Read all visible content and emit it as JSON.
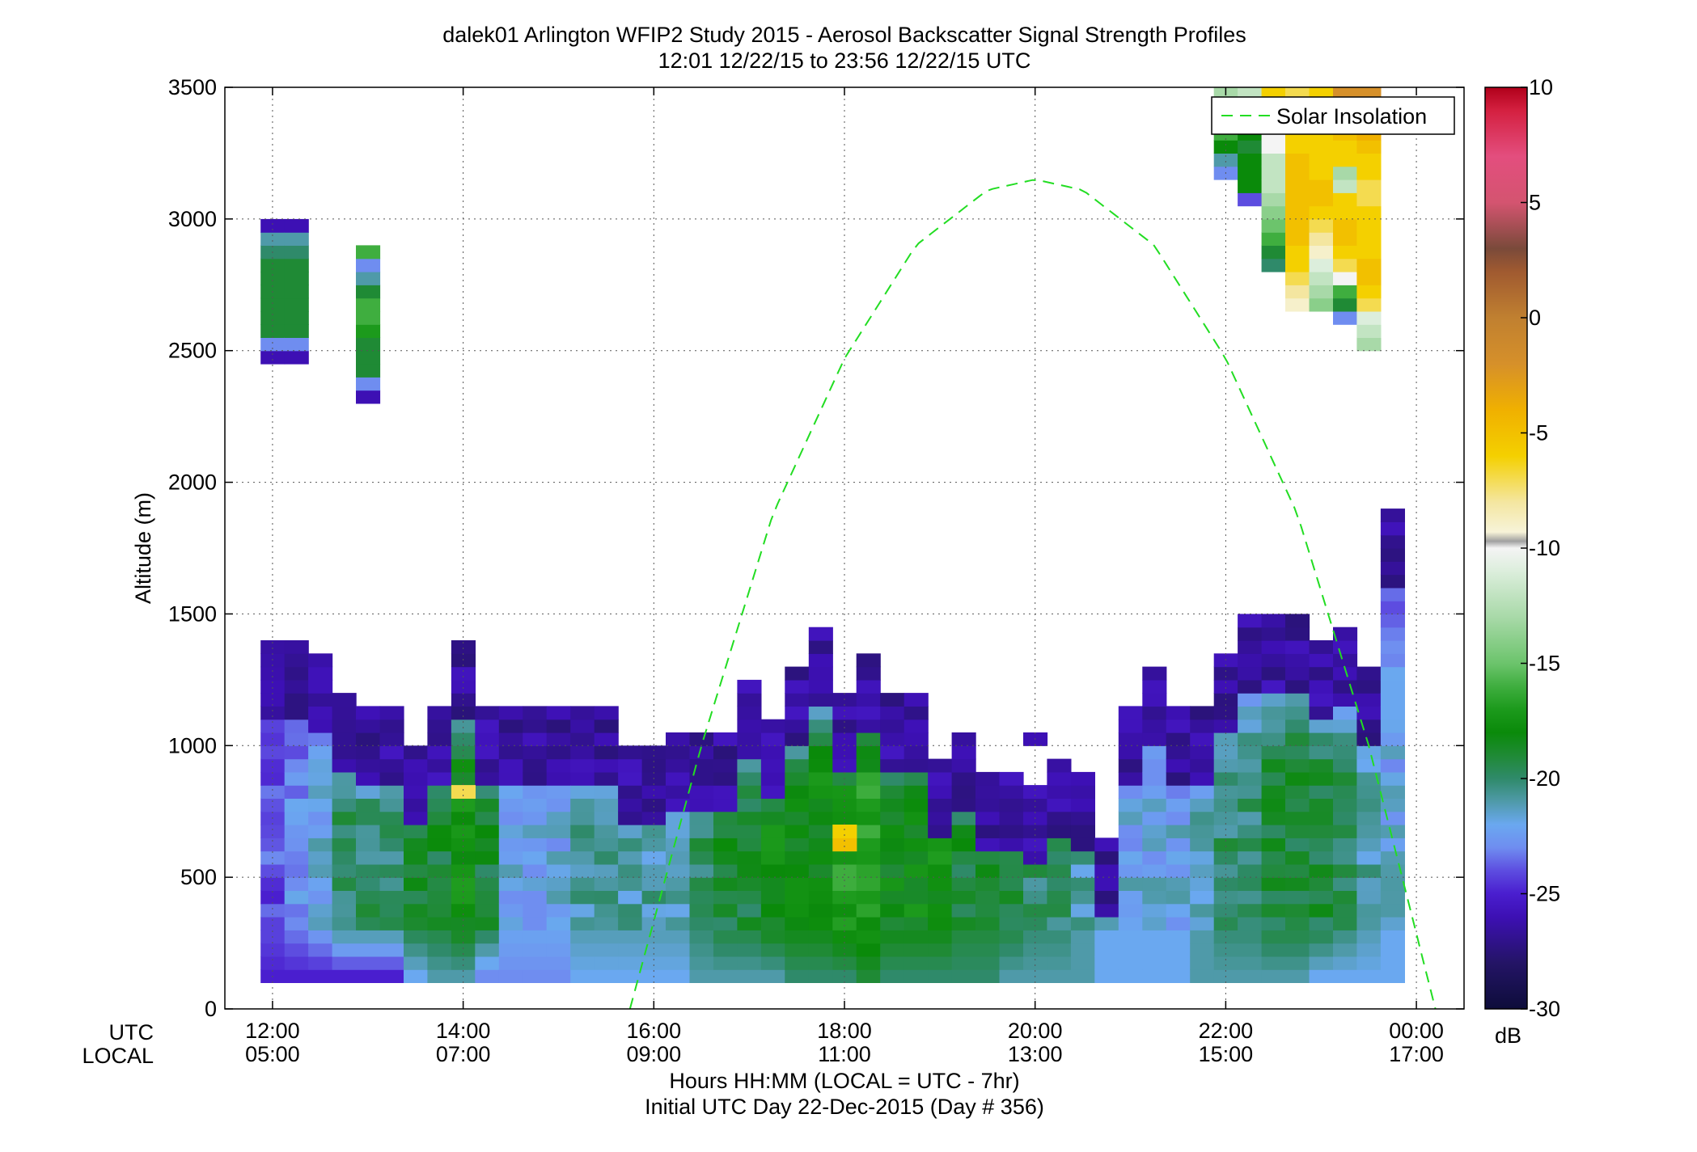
{
  "chart_data": {
    "type": "heatmap",
    "title": "dalek01 Arlington WFIP2 Study 2015 - Aerosol Backscatter Signal Strength Profiles",
    "subtitle": "12:01 12/22/15 to 23:56 12/22/15  UTC",
    "xlabel": "Hours HH:MM  (LOCAL = UTC - 7hr)",
    "xlabel2": "Initial UTC Day 22-Dec-2015 (Day # 356)",
    "ylabel": "Altitude (m)",
    "xrow_label_utc": "UTC",
    "xrow_label_local": "LOCAL",
    "xlim_hours_utc": [
      11.5,
      24.5
    ],
    "ylim": [
      0,
      3500
    ],
    "x_ticks": [
      {
        "hour": 12,
        "utc": "12:00",
        "local": "05:00"
      },
      {
        "hour": 14,
        "utc": "14:00",
        "local": "07:00"
      },
      {
        "hour": 16,
        "utc": "16:00",
        "local": "09:00"
      },
      {
        "hour": 18,
        "utc": "18:00",
        "local": "11:00"
      },
      {
        "hour": 20,
        "utc": "20:00",
        "local": "13:00"
      },
      {
        "hour": 22,
        "utc": "22:00",
        "local": "15:00"
      },
      {
        "hour": 24,
        "utc": "00:00",
        "local": "17:00"
      }
    ],
    "y_ticks": [
      0,
      500,
      1000,
      1500,
      2000,
      2500,
      3000,
      3500
    ],
    "grid": true,
    "legend": {
      "entries": [
        "Solar Insolation"
      ],
      "placement": "top-right"
    },
    "colorbar": {
      "label": "dB",
      "range": [
        -30,
        10
      ],
      "ticks": [
        10,
        5,
        0,
        -5,
        -10,
        -15,
        -20,
        -25,
        -30
      ]
    },
    "solar_insolation": {
      "style": "dashed",
      "color": "#22dd22",
      "points_hour_alt": [
        [
          15.75,
          0
        ],
        [
          16.5,
          1000
        ],
        [
          17.25,
          1880
        ],
        [
          18,
          2470
        ],
        [
          18.75,
          2900
        ],
        [
          19.5,
          3110
        ],
        [
          20,
          3150
        ],
        [
          20.5,
          3110
        ],
        [
          21.25,
          2900
        ],
        [
          22,
          2470
        ],
        [
          22.75,
          1880
        ],
        [
          23.5,
          1000
        ],
        [
          24.2,
          0
        ]
      ]
    },
    "data_grid": {
      "units": "dB",
      "gate_altitude_m": 50,
      "profile_spacing_h": 0.25,
      "profiles": [
        {
          "hour": 12.0,
          "top_m": 1400,
          "near": -25,
          "mid": -24
        },
        {
          "hour": 12.25,
          "top_m": 1400,
          "near": -25,
          "mid": -23
        },
        {
          "hour": 12.5,
          "top_m": 1350,
          "near": -25,
          "mid": -22
        },
        {
          "hour": 12.75,
          "top_m": 1200,
          "near": -25,
          "mid": -20
        },
        {
          "hour": 13.0,
          "top_m": 1150,
          "near": -25,
          "mid": -20
        },
        {
          "hour": 13.25,
          "top_m": 1150,
          "near": -25,
          "mid": -20
        },
        {
          "hour": 13.5,
          "top_m": 1000,
          "near": -22,
          "mid": -19
        },
        {
          "hour": 13.75,
          "top_m": 1150,
          "near": -21,
          "mid": -19
        },
        {
          "hour": 14.0,
          "top_m": 1400,
          "near": -21,
          "mid": -18
        },
        {
          "hour": 14.25,
          "top_m": 1150,
          "near": -23,
          "mid": -19
        },
        {
          "hour": 14.5,
          "top_m": 1150,
          "near": -23,
          "mid": -22
        },
        {
          "hour": 14.75,
          "top_m": 1150,
          "near": -23,
          "mid": -22
        },
        {
          "hour": 15.0,
          "top_m": 1150,
          "near": -23,
          "mid": -22
        },
        {
          "hour": 15.25,
          "top_m": 1150,
          "near": -22,
          "mid": -21
        },
        {
          "hour": 15.5,
          "top_m": 1150,
          "near": -22,
          "mid": -21
        },
        {
          "hour": 15.75,
          "top_m": 1000,
          "near": -22,
          "mid": -21
        },
        {
          "hour": 16.0,
          "top_m": 1000,
          "near": -22,
          "mid": -21
        },
        {
          "hour": 16.25,
          "top_m": 1050,
          "near": -22,
          "mid": -21
        },
        {
          "hour": 16.5,
          "top_m": 1050,
          "near": -21,
          "mid": -20
        },
        {
          "hour": 16.75,
          "top_m": 1050,
          "near": -21,
          "mid": -19
        },
        {
          "hour": 17.0,
          "top_m": 1250,
          "near": -21,
          "mid": -19
        },
        {
          "hour": 17.25,
          "top_m": 1100,
          "near": -21,
          "mid": -18
        },
        {
          "hour": 17.5,
          "top_m": 1300,
          "near": -20,
          "mid": -18
        },
        {
          "hour": 17.75,
          "top_m": 1450,
          "near": -20,
          "mid": -18
        },
        {
          "hour": 18.0,
          "top_m": 1200,
          "near": -20,
          "mid": -17
        },
        {
          "hour": 18.25,
          "top_m": 1350,
          "near": -19,
          "mid": -17
        },
        {
          "hour": 18.5,
          "top_m": 1200,
          "near": -20,
          "mid": -18
        },
        {
          "hour": 18.75,
          "top_m": 1200,
          "near": -20,
          "mid": -18
        },
        {
          "hour": 19.0,
          "top_m": 950,
          "near": -20,
          "mid": -18
        },
        {
          "hour": 19.25,
          "top_m": 1050,
          "near": -20,
          "mid": -19
        },
        {
          "hour": 19.5,
          "top_m": 900,
          "near": -20,
          "mid": -19
        },
        {
          "hour": 19.75,
          "top_m": 900,
          "near": -21,
          "mid": -19
        },
        {
          "hour": 20.0,
          "top_m": 850,
          "near": -21,
          "mid": -20
        },
        {
          "hour": 20.25,
          "top_m": 950,
          "near": -21,
          "mid": -20
        },
        {
          "hour": 20.5,
          "top_m": 900,
          "near": -21,
          "mid": -21
        },
        {
          "hour": 20.75,
          "top_m": 650,
          "near": -22,
          "mid": -22
        },
        {
          "hour": 21.0,
          "top_m": 1150,
          "near": -22,
          "mid": -22
        },
        {
          "hour": 21.25,
          "top_m": 1300,
          "near": -22,
          "mid": -22
        },
        {
          "hour": 21.5,
          "top_m": 1150,
          "near": -22,
          "mid": -22
        },
        {
          "hour": 21.75,
          "top_m": 1150,
          "near": -21,
          "mid": -21
        },
        {
          "hour": 22.0,
          "top_m": 1350,
          "near": -21,
          "mid": -20
        },
        {
          "hour": 22.25,
          "top_m": 1500,
          "near": -21,
          "mid": -20
        },
        {
          "hour": 22.5,
          "top_m": 1500,
          "near": -21,
          "mid": -19
        },
        {
          "hour": 22.75,
          "top_m": 1500,
          "near": -21,
          "mid": -19
        },
        {
          "hour": 23.0,
          "top_m": 1400,
          "near": -22,
          "mid": -19
        },
        {
          "hour": 23.25,
          "top_m": 1450,
          "near": -22,
          "mid": -20
        },
        {
          "hour": 23.5,
          "top_m": 1300,
          "near": -22,
          "mid": -21
        },
        {
          "hour": 23.75,
          "top_m": 1900,
          "near": -22,
          "mid": -22
        }
      ],
      "elevated_cells": [
        {
          "hour": 12.0,
          "from_m": 2450,
          "to_m": 3000,
          "db": [
            -26,
            -23,
            -19,
            -19,
            -19,
            -19,
            -19,
            -19,
            -20,
            -21,
            -26
          ]
        },
        {
          "hour": 12.25,
          "from_m": 2450,
          "to_m": 3000,
          "db": [
            -26,
            -23,
            -19,
            -19,
            -19,
            -19,
            -19,
            -19,
            -20,
            -21,
            -26
          ]
        },
        {
          "hour": 13.0,
          "from_m": 2300,
          "to_m": 2900,
          "db": [
            -26,
            -23,
            -19,
            -19,
            -19,
            -17,
            -16,
            -16,
            -19,
            -21,
            -23,
            -16
          ]
        },
        {
          "hour": 20.0,
          "from_m": 1000,
          "to_m": 1050,
          "db": [
            -26
          ]
        },
        {
          "hour": 18.0,
          "from_m": 600,
          "to_m": 700,
          "db": [
            -5,
            -6
          ]
        },
        {
          "hour": 14.0,
          "from_m": 800,
          "to_m": 850,
          "db": [
            -7
          ]
        }
      ],
      "upper_right_cells": [
        {
          "hour": 22.0,
          "from_m": 3150,
          "to_m": 3500,
          "db": [
            -23,
            -21,
            -18,
            -16,
            -15,
            -14,
            -13
          ]
        },
        {
          "hour": 22.25,
          "from_m": 3050,
          "to_m": 3500,
          "db": [
            -24,
            -18,
            -18,
            -18,
            -19,
            -18,
            -14,
            -13,
            -12
          ]
        },
        {
          "hour": 22.5,
          "from_m": 2800,
          "to_m": 3500,
          "db": [
            -20,
            -19,
            -16,
            -15,
            -14,
            -13,
            -12,
            -12,
            -12,
            -10,
            -10,
            -8,
            -7,
            -6
          ]
        },
        {
          "hour": 22.75,
          "from_m": 2650,
          "to_m": 3500,
          "db": [
            -9,
            -8,
            -7,
            -6,
            -6,
            -5,
            -5,
            -5,
            -5,
            -5,
            -5,
            -5,
            -6,
            -6,
            -6,
            -7,
            -7
          ]
        },
        {
          "hour": 23.0,
          "from_m": 2650,
          "to_m": 3500,
          "db": [
            -14,
            -13,
            -12,
            -11,
            -9,
            -8,
            -7,
            -6,
            -5,
            -5,
            -6,
            -6,
            -6,
            -6,
            -6,
            -6,
            -6
          ]
        },
        {
          "hour": 23.25,
          "from_m": 2600,
          "to_m": 3500,
          "db": [
            -23,
            -19,
            -16,
            -10,
            -7,
            -6,
            -5,
            -5,
            -6,
            -6,
            -12,
            -13,
            -6,
            -6,
            -5,
            -4,
            -3,
            -2
          ]
        },
        {
          "hour": 23.5,
          "from_m": 2500,
          "to_m": 3500,
          "db": [
            -13,
            -12,
            -11,
            -7,
            -6,
            -5,
            -5,
            -6,
            -6,
            -6,
            -6,
            -7,
            -7,
            -6,
            -6,
            -5,
            -4,
            -3,
            -2,
            -2
          ]
        }
      ]
    }
  }
}
